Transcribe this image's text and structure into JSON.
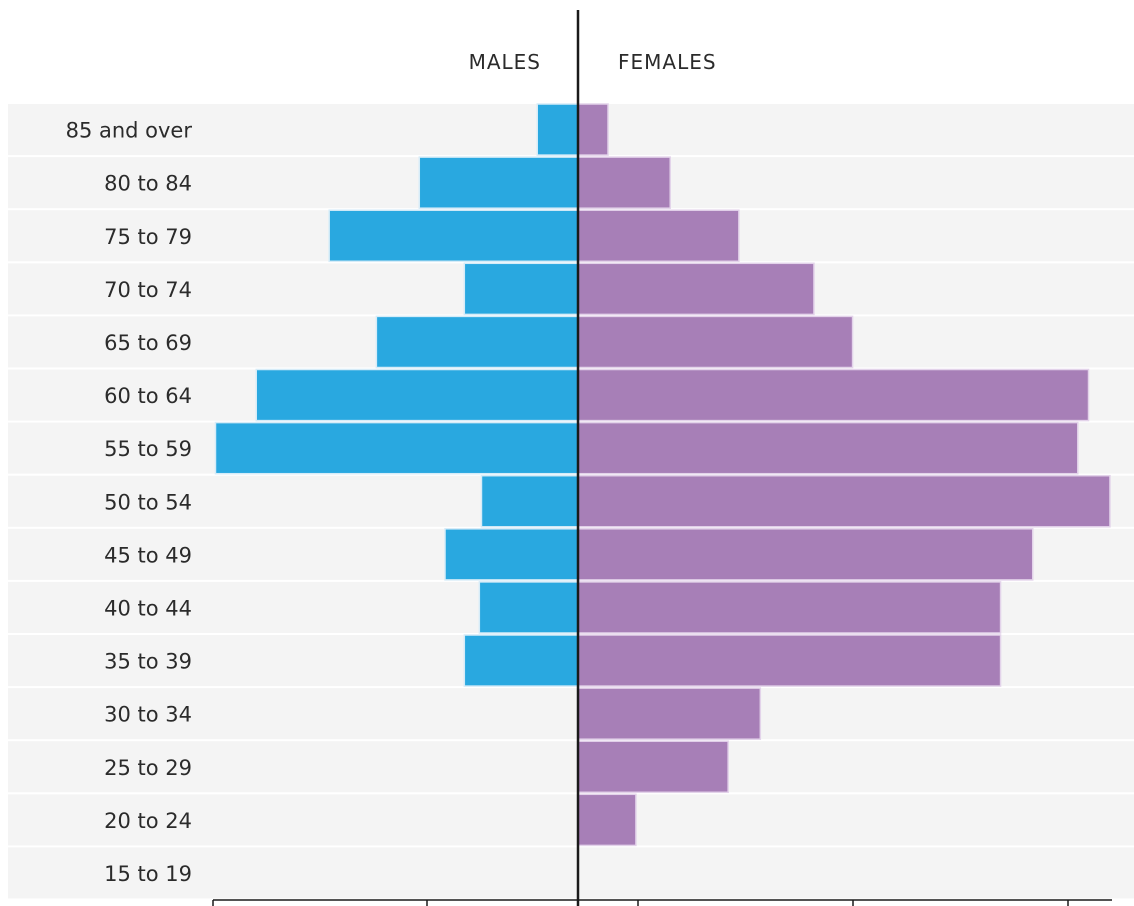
{
  "chart_data": {
    "type": "bar",
    "orientation": "horizontal",
    "subtype": "population-pyramid",
    "categories": [
      "85 and over",
      "80 to 84",
      "75 to 79",
      "70 to 74",
      "65 to 69",
      "60 to 64",
      "55 to 59",
      "50 to 54",
      "45 to 49",
      "40 to 44",
      "35 to 39",
      "30 to 34",
      "25 to 29",
      "20 to 24",
      "15 to 19"
    ],
    "series": [
      {
        "name": "MALES",
        "color": "#29a8e0",
        "values": [
          1.9,
          7.4,
          11.6,
          5.3,
          9.4,
          15.0,
          16.9,
          4.5,
          6.2,
          4.6,
          5.3,
          0,
          0,
          0,
          0
        ]
      },
      {
        "name": "FEMALES",
        "color": "#a77fb7",
        "values": [
          1.4,
          4.3,
          7.5,
          11.0,
          12.8,
          23.8,
          23.3,
          24.8,
          21.2,
          19.7,
          19.7,
          8.5,
          7.0,
          2.7,
          0
        ]
      }
    ],
    "xlim_left": [
      20,
      0
    ],
    "xlim_right": [
      0,
      25
    ],
    "x_ticks": [
      20,
      10,
      0,
      10,
      20
    ],
    "xlabel": "",
    "ylabel": "",
    "title": "",
    "grid": false,
    "row_band_color": "#f4f4f4",
    "axis_color": "#1a1a1a"
  }
}
